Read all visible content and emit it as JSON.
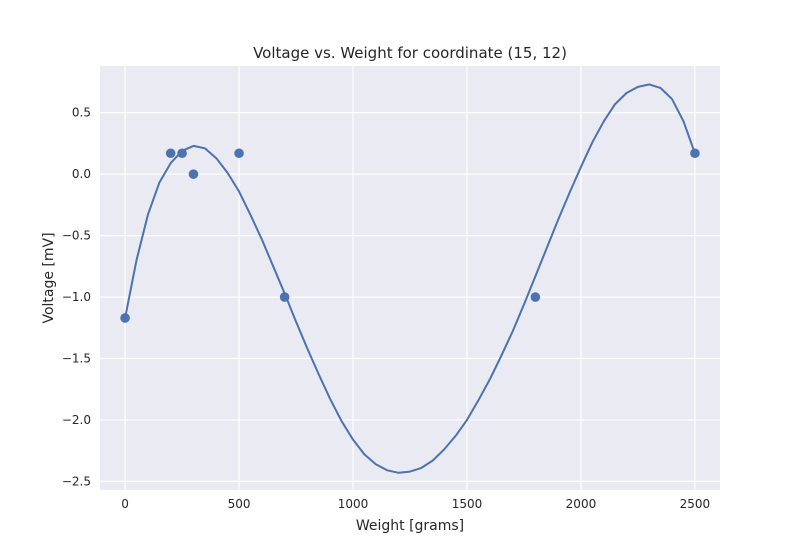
{
  "chart_data": {
    "type": "scatter",
    "title": "Voltage vs. Weight for coordinate (15, 12)",
    "xlabel": "Weight [grams]",
    "ylabel": "Voltage [mV]",
    "xlim": [
      -110,
      2610
    ],
    "ylim": [
      -2.57,
      0.88
    ],
    "grid": true,
    "background_color": "#eaeaf2",
    "series_color": "#4c72b0",
    "x_ticks": [
      0,
      500,
      1000,
      1500,
      2000,
      2500
    ],
    "x_tick_labels": [
      "0",
      "500",
      "1000",
      "1500",
      "2000",
      "2500"
    ],
    "y_ticks": [
      0.5,
      0.0,
      -0.5,
      -1.0,
      -1.5,
      -2.0,
      -2.5
    ],
    "y_tick_labels": [
      "0.5",
      "0.0",
      "−0.5",
      "−1.0",
      "−1.5",
      "−2.0",
      "−2.5"
    ],
    "points": {
      "x": [
        0,
        200,
        250,
        300,
        500,
        700,
        1800,
        2500
      ],
      "y": [
        -1.17,
        0.17,
        0.17,
        0.0,
        0.17,
        -1.0,
        -1.0,
        0.17
      ]
    },
    "fit_line": {
      "x": [
        0,
        50,
        100,
        150,
        200,
        250,
        300,
        350,
        400,
        450,
        500,
        550,
        600,
        650,
        700,
        750,
        800,
        850,
        900,
        950,
        1000,
        1050,
        1100,
        1150,
        1200,
        1250,
        1300,
        1350,
        1400,
        1450,
        1500,
        1550,
        1600,
        1650,
        1700,
        1750,
        1800,
        1850,
        1900,
        1950,
        2000,
        2050,
        2100,
        2150,
        2200,
        2250,
        2300,
        2350,
        2400,
        2450,
        2500
      ],
      "y": [
        -1.17,
        -0.7,
        -0.33,
        -0.07,
        0.09,
        0.19,
        0.23,
        0.21,
        0.13,
        0.01,
        -0.14,
        -0.33,
        -0.53,
        -0.75,
        -0.97,
        -1.2,
        -1.42,
        -1.63,
        -1.83,
        -2.01,
        -2.16,
        -2.28,
        -2.36,
        -2.41,
        -2.43,
        -2.42,
        -2.39,
        -2.33,
        -2.24,
        -2.13,
        -2.0,
        -1.84,
        -1.67,
        -1.48,
        -1.28,
        -1.06,
        -0.83,
        -0.6,
        -0.37,
        -0.15,
        0.06,
        0.26,
        0.43,
        0.57,
        0.66,
        0.71,
        0.73,
        0.7,
        0.61,
        0.43,
        0.17
      ]
    }
  }
}
